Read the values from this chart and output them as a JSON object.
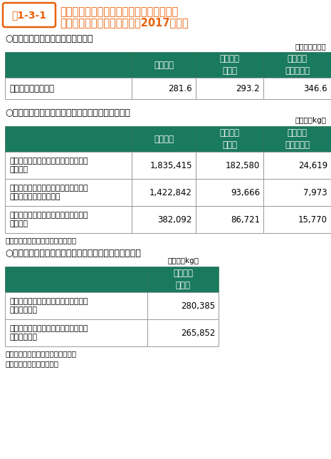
{
  "title_tag": "表1-3-1",
  "title_line1": "家電リサイクル法に基づく再商品化による",
  "title_line2": "フロン類の回収量・破壊量（2017年度）",
  "tag_color": "#E8610A",
  "header_bg": "#1a7a5e",
  "header_text_color": "#ffffff",
  "body_bg": "#ffffff",
  "border_color": "#aaaaaa",
  "section1_title": "○廃家電４品目の再商品化実施状況",
  "section1_unit": "（単位：万台）",
  "section1_headers": [
    "エアコン",
    "冷蔵庫・\n冷凍庫",
    "洗濯機・\n衣類乾燥機"
  ],
  "section1_row_label": "再商品化等処理台数",
  "section1_data": [
    "281.6",
    "293.2",
    "346.6"
  ],
  "section2_title": "○冷媒として使用されていたフロン類の回収重量等",
  "section2_unit": "（単位：kg）",
  "section2_headers": [
    "エアコン",
    "冷蔵庫・\n冷凍庫",
    "洗濯機・\n衣類乾燥機"
  ],
  "section2_row1_label": "冷媒として使用されていたフロン類の\n回収重量",
  "section2_row1_data": [
    "1,835,415",
    "182,580",
    "24,619"
  ],
  "section2_row2_label": "冷媒として使用されていたフロン類の\n再生又は再利用した重量",
  "section2_row2_data": [
    "1,422,842",
    "93,666",
    "7,973"
  ],
  "section2_row3_label": "冷媒として使用されていたフロン類の\n破壊重量",
  "section2_row3_data": [
    "382,092",
    "86,721",
    "15,770"
  ],
  "note1": "注：値は全て小数点以下を切捨て。",
  "section3_title": "○断熱材に含まれる液化回収したフロン類の回収重量等",
  "section3_unit": "（単位：kg）",
  "section3_headers": [
    "冷蔵庫・\n冷凍庫"
  ],
  "section3_row1_label": "断熱材に含まれる液化回収したフロン\n類の回収重量",
  "section3_row1_data": [
    "280,385"
  ],
  "section3_row2_label": "断熱材に含まれる液化回収したフロン\n類の破壊重量",
  "section3_row2_data": [
    "265,852"
  ],
  "note2": "注：値は全て小数点以下を切捨て。",
  "source": "資料：環境省、経済産業省",
  "bg_color": "#ffffff"
}
